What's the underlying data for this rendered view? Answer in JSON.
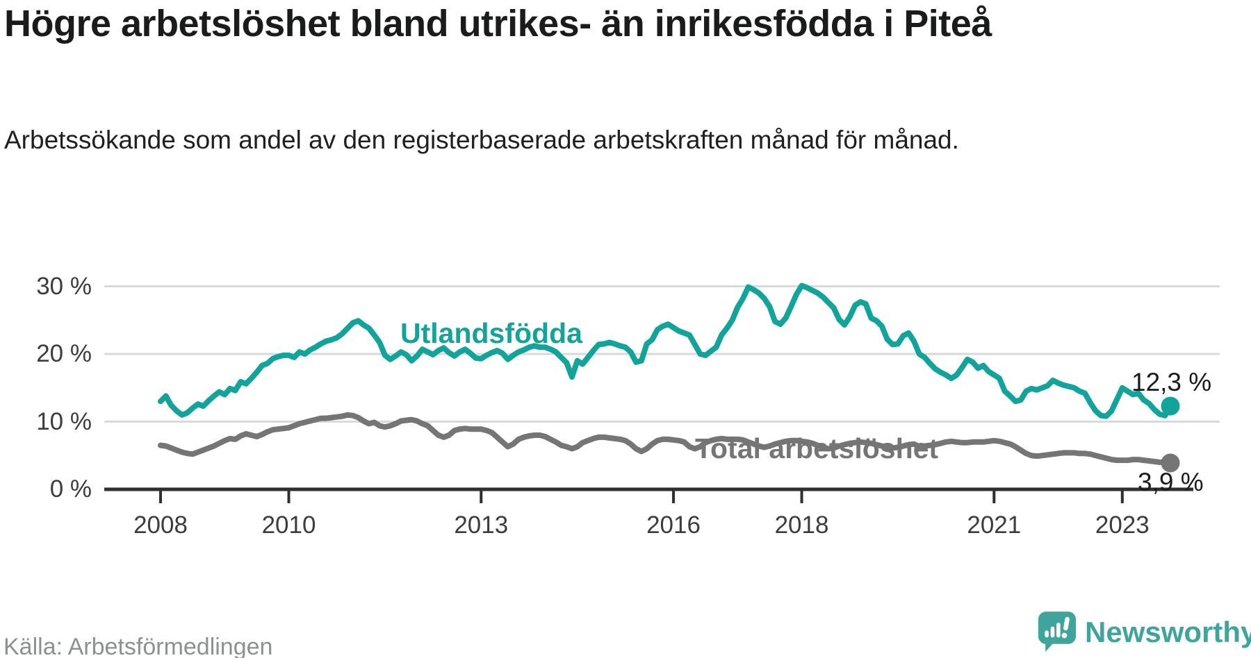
{
  "header": {
    "title": "Högre arbetslöshet bland utrikes- än inrikesfödda i Piteå",
    "subtitle": "Arbetssökande som andel av den registerbaserade arbetskraften månad för månad."
  },
  "chart_data": {
    "type": "line",
    "x_start": "2008-01",
    "x_end": "2023-10",
    "x_unit": "month",
    "x_ticks": [
      2008,
      2010,
      2013,
      2016,
      2018,
      2021,
      2023
    ],
    "y_ticks": [
      {
        "label": "0 %",
        "value": 0
      },
      {
        "label": "10 %",
        "value": 10
      },
      {
        "label": "20 %",
        "value": 20
      },
      {
        "label": "30 %",
        "value": 30
      }
    ],
    "ylim": [
      0,
      32
    ],
    "grid": "horizontal",
    "legend_position": "inline-annotations",
    "colors": {
      "accent_teal": "#12a39a",
      "neutral_gray": "#757575",
      "grid": "#d9d9d9",
      "axis": "#2f2f2f"
    },
    "series": [
      {
        "name": "Utlandsfödda",
        "color": "#12a39a",
        "end_label": "12,3 %",
        "end_value": 12.3,
        "values": [
          13.0,
          13.8,
          12.4,
          11.6,
          11.0,
          11.3,
          12.0,
          12.6,
          12.3,
          13.1,
          13.8,
          14.4,
          14.0,
          14.9,
          14.6,
          15.9,
          15.6,
          16.4,
          17.3,
          18.3,
          18.6,
          19.3,
          19.6,
          19.8,
          19.8,
          19.5,
          20.3,
          20.0,
          20.6,
          21.0,
          21.5,
          21.9,
          22.1,
          22.4,
          23.0,
          23.8,
          24.6,
          24.9,
          24.3,
          23.8,
          22.8,
          21.7,
          19.8,
          19.2,
          19.7,
          20.3,
          19.9,
          19.0,
          19.7,
          20.7,
          20.3,
          19.9,
          20.5,
          20.9,
          20.2,
          19.7,
          20.3,
          20.7,
          20.1,
          19.4,
          19.3,
          19.8,
          20.2,
          20.5,
          20.1,
          19.2,
          19.8,
          20.3,
          20.6,
          21.0,
          21.2,
          21.0,
          21.0,
          20.7,
          20.3,
          19.5,
          18.7,
          16.6,
          19.0,
          18.5,
          19.5,
          20.5,
          21.4,
          21.5,
          21.7,
          21.5,
          21.2,
          21.0,
          20.3,
          18.8,
          19.0,
          21.5,
          22.1,
          23.6,
          24.1,
          24.4,
          23.9,
          23.4,
          23.1,
          22.8,
          21.4,
          20.0,
          19.8,
          20.4,
          21.0,
          22.8,
          23.8,
          25.0,
          26.9,
          28.2,
          29.9,
          29.5,
          29.0,
          28.2,
          27.0,
          24.8,
          24.4,
          25.3,
          27.0,
          28.8,
          30.1,
          29.8,
          29.4,
          29.0,
          28.4,
          27.6,
          26.8,
          25.1,
          24.3,
          25.5,
          27.2,
          27.7,
          27.4,
          25.3,
          24.9,
          24.1,
          22.2,
          21.4,
          21.5,
          22.7,
          23.1,
          21.9,
          20.0,
          19.5,
          18.6,
          17.8,
          17.3,
          16.9,
          16.4,
          16.9,
          18.0,
          19.2,
          18.8,
          17.9,
          18.3,
          17.4,
          16.9,
          16.4,
          14.5,
          13.8,
          13.0,
          13.2,
          14.5,
          14.9,
          14.7,
          15.0,
          15.3,
          16.1,
          15.7,
          15.4,
          15.2,
          15.0,
          14.5,
          14.2,
          12.8,
          11.6,
          10.9,
          10.8,
          11.6,
          13.3,
          15.0,
          14.5,
          14.0,
          14.2,
          13.2,
          12.7,
          11.8,
          11.1,
          10.9,
          12.3
        ]
      },
      {
        "name": "Total arbetslöshet",
        "color": "#757575",
        "end_label": "3,9 %",
        "end_value": 3.9,
        "values": [
          6.5,
          6.4,
          6.1,
          5.8,
          5.5,
          5.3,
          5.2,
          5.5,
          5.8,
          6.1,
          6.4,
          6.8,
          7.2,
          7.5,
          7.4,
          7.9,
          8.2,
          8.0,
          7.8,
          8.1,
          8.5,
          8.8,
          8.9,
          9.0,
          9.1,
          9.4,
          9.7,
          9.9,
          10.1,
          10.3,
          10.5,
          10.5,
          10.6,
          10.7,
          10.8,
          11.0,
          10.9,
          10.6,
          10.1,
          9.7,
          9.9,
          9.4,
          9.2,
          9.4,
          9.7,
          10.1,
          10.2,
          10.3,
          10.1,
          9.7,
          9.4,
          8.7,
          8.0,
          7.7,
          8.0,
          8.7,
          8.9,
          9.0,
          8.9,
          8.9,
          8.9,
          8.7,
          8.4,
          7.7,
          7.0,
          6.3,
          6.7,
          7.4,
          7.7,
          7.9,
          8.0,
          8.0,
          7.8,
          7.4,
          7.0,
          6.5,
          6.3,
          6.0,
          6.3,
          6.9,
          7.2,
          7.5,
          7.7,
          7.7,
          7.6,
          7.5,
          7.4,
          7.2,
          6.7,
          6.0,
          5.6,
          6.0,
          6.7,
          7.2,
          7.4,
          7.4,
          7.3,
          7.2,
          7.0,
          6.3,
          6.0,
          6.3,
          6.9,
          7.2,
          7.4,
          7.5,
          7.4,
          7.4,
          7.4,
          7.3,
          7.0,
          6.7,
          6.4,
          6.2,
          6.4,
          6.7,
          6.9,
          7.1,
          7.2,
          7.2,
          7.1,
          7.0,
          6.8,
          6.5,
          6.2,
          6.0,
          6.1,
          6.4,
          6.6,
          6.8,
          6.9,
          7.0,
          6.9,
          6.8,
          6.6,
          6.4,
          6.2,
          6.1,
          6.2,
          6.4,
          6.6,
          6.7,
          6.3,
          6.4,
          6.5,
          6.6,
          6.8,
          7.0,
          7.1,
          7.0,
          6.9,
          6.9,
          7.0,
          7.0,
          7.0,
          7.1,
          7.2,
          7.1,
          6.9,
          6.7,
          6.3,
          5.8,
          5.3,
          5.0,
          4.9,
          5.0,
          5.1,
          5.2,
          5.3,
          5.4,
          5.4,
          5.4,
          5.3,
          5.3,
          5.2,
          5.0,
          4.8,
          4.6,
          4.4,
          4.3,
          4.3,
          4.3,
          4.4,
          4.4,
          4.3,
          4.2,
          4.1,
          4.0,
          4.0,
          3.9
        ]
      }
    ]
  },
  "footer": {
    "source": "Källa: Arbetsförmedlingen",
    "brand": "Newsworthy"
  }
}
